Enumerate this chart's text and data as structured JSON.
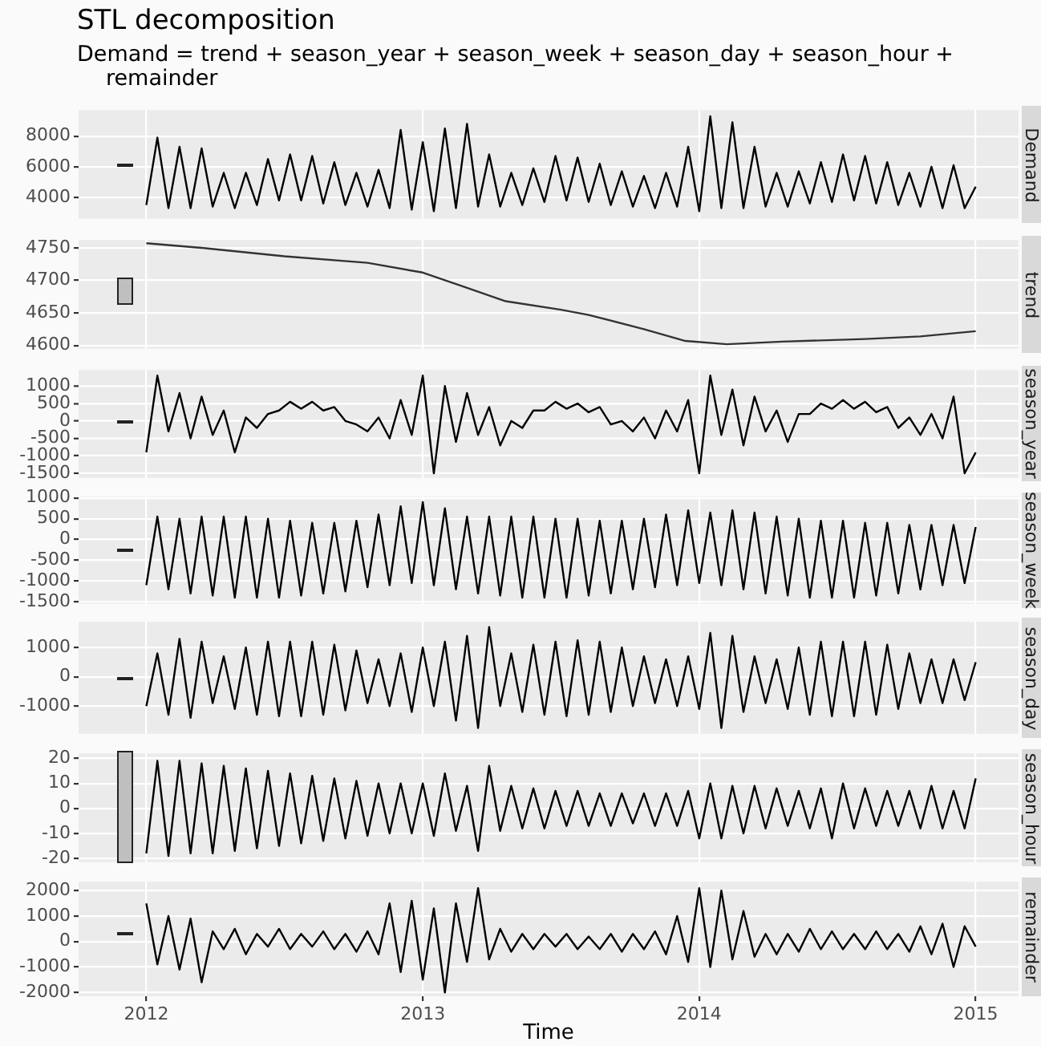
{
  "chart_data": [
    {
      "type": "line",
      "title": "STL decomposition",
      "subtitle": "Demand = trend + season_year + season_week + season_day + season_hour + remainder",
      "ylabel": "Demand",
      "color": "#000000",
      "grid": true,
      "tick_labels": "y",
      "xlim": [
        2011.755,
        2015.155
      ],
      "xticks": [
        2012,
        2013,
        2014,
        2015
      ],
      "ylim": [
        2600,
        9700
      ],
      "yticks": [
        4000,
        6000,
        8000
      ],
      "x": [
        2012,
        2012.04,
        2012.08,
        2012.12,
        2012.16,
        2012.2,
        2012.24,
        2012.28,
        2012.32,
        2012.36,
        2012.4,
        2012.44,
        2012.48,
        2012.52,
        2012.56,
        2012.6,
        2012.64,
        2012.68,
        2012.72,
        2012.76,
        2012.8,
        2012.84,
        2012.88,
        2012.92,
        2012.96,
        2013,
        2013.04,
        2013.08,
        2013.12,
        2013.16,
        2013.2,
        2013.24,
        2013.28,
        2013.32,
        2013.36,
        2013.4,
        2013.44,
        2013.48,
        2013.52,
        2013.56,
        2013.6,
        2013.64,
        2013.68,
        2013.72,
        2013.76,
        2013.8,
        2013.84,
        2013.88,
        2013.92,
        2013.96,
        2014,
        2014.04,
        2014.08,
        2014.12,
        2014.16,
        2014.2,
        2014.24,
        2014.28,
        2014.32,
        2014.36,
        2014.4,
        2014.44,
        2014.48,
        2014.52,
        2014.56,
        2014.6,
        2014.64,
        2014.68,
        2014.72,
        2014.76,
        2014.8,
        2014.84,
        2014.88,
        2014.92,
        2014.96,
        2015
      ],
      "values": [
        3500,
        7900,
        3300,
        7300,
        3300,
        7200,
        3400,
        5600,
        3300,
        5600,
        3500,
        6500,
        3800,
        6800,
        3800,
        6700,
        3600,
        6300,
        3500,
        5600,
        3400,
        5800,
        3300,
        8400,
        3200,
        7600,
        3100,
        8500,
        3300,
        8800,
        3400,
        6800,
        3400,
        5600,
        3500,
        5900,
        3700,
        6700,
        3800,
        6600,
        3700,
        6200,
        3500,
        5700,
        3400,
        5400,
        3300,
        5600,
        3400,
        7300,
        3100,
        9300,
        3300,
        8900,
        3300,
        7300,
        3400,
        5600,
        3400,
        5700,
        3600,
        6300,
        3700,
        6800,
        3800,
        6700,
        3600,
        6300,
        3500,
        5600,
        3400,
        6000,
        3300,
        6100,
        3300,
        4700
      ]
    },
    {
      "type": "line",
      "ylabel": "trend",
      "color": "#333333",
      "grid": true,
      "tick_labels": "y",
      "xlim": [
        2011.755,
        2015.155
      ],
      "xticks": [
        2012,
        2013,
        2014,
        2015
      ],
      "ylim": [
        4595,
        4762
      ],
      "yticks": [
        4600,
        4650,
        4700,
        4750
      ],
      "x": [
        2012,
        2012.2,
        2012.5,
        2012.8,
        2013,
        2013.15,
        2013.3,
        2013.5,
        2013.6,
        2013.8,
        2013.95,
        2014.1,
        2014.3,
        2014.6,
        2014.8,
        2015
      ],
      "values": [
        4757,
        4750,
        4737,
        4727,
        4712,
        4690,
        4668,
        4655,
        4647,
        4625,
        4607,
        4602,
        4606,
        4610,
        4614,
        4622
      ]
    },
    {
      "type": "line",
      "ylabel": "season_year",
      "color": "#000000",
      "grid": true,
      "tick_labels": "y",
      "xlim": [
        2011.755,
        2015.155
      ],
      "xticks": [
        2012,
        2013,
        2014,
        2015
      ],
      "ylim": [
        -1630,
        1460
      ],
      "yticks": [
        -1500,
        -1000,
        -500,
        0,
        500,
        1000
      ],
      "x": [
        2012,
        2012.04,
        2012.08,
        2012.12,
        2012.16,
        2012.2,
        2012.24,
        2012.28,
        2012.32,
        2012.36,
        2012.4,
        2012.44,
        2012.48,
        2012.52,
        2012.56,
        2012.6,
        2012.64,
        2012.68,
        2012.72,
        2012.76,
        2012.8,
        2012.84,
        2012.88,
        2012.92,
        2012.96,
        2013,
        2013.04,
        2013.08,
        2013.12,
        2013.16,
        2013.2,
        2013.24,
        2013.28,
        2013.32,
        2013.36,
        2013.4,
        2013.44,
        2013.48,
        2013.52,
        2013.56,
        2013.6,
        2013.64,
        2013.68,
        2013.72,
        2013.76,
        2013.8,
        2013.84,
        2013.88,
        2013.92,
        2013.96,
        2014,
        2014.04,
        2014.08,
        2014.12,
        2014.16,
        2014.2,
        2014.24,
        2014.28,
        2014.32,
        2014.36,
        2014.4,
        2014.44,
        2014.48,
        2014.52,
        2014.56,
        2014.6,
        2014.64,
        2014.68,
        2014.72,
        2014.76,
        2014.8,
        2014.84,
        2014.88,
        2014.92,
        2014.96,
        2015
      ],
      "values": [
        -900,
        1300,
        -300,
        800,
        -500,
        700,
        -400,
        300,
        -900,
        100,
        -200,
        200,
        300,
        550,
        350,
        550,
        300,
        400,
        0,
        -100,
        -300,
        100,
        -500,
        600,
        -400,
        1300,
        -1500,
        1000,
        -600,
        800,
        -400,
        400,
        -700,
        0,
        -200,
        300,
        300,
        550,
        350,
        500,
        250,
        400,
        -100,
        0,
        -300,
        100,
        -500,
        300,
        -300,
        600,
        -1500,
        1300,
        -400,
        900,
        -700,
        700,
        -300,
        300,
        -600,
        200,
        200,
        500,
        350,
        600,
        350,
        550,
        250,
        400,
        -200,
        100,
        -400,
        200,
        -500,
        700,
        -1500,
        -900
      ]
    },
    {
      "type": "line",
      "ylabel": "season_week",
      "color": "#000000",
      "grid": true,
      "tick_labels": "y",
      "xlim": [
        2011.755,
        2015.155
      ],
      "xticks": [
        2012,
        2013,
        2014,
        2015
      ],
      "ylim": [
        -1550,
        1030
      ],
      "yticks": [
        -1500,
        -1000,
        -500,
        0,
        500,
        1000
      ],
      "x": [
        2012,
        2012.04,
        2012.08,
        2012.12,
        2012.16,
        2012.2,
        2012.24,
        2012.28,
        2012.32,
        2012.36,
        2012.4,
        2012.44,
        2012.48,
        2012.52,
        2012.56,
        2012.6,
        2012.64,
        2012.68,
        2012.72,
        2012.76,
        2012.8,
        2012.84,
        2012.88,
        2012.92,
        2012.96,
        2013,
        2013.04,
        2013.08,
        2013.12,
        2013.16,
        2013.2,
        2013.24,
        2013.28,
        2013.32,
        2013.36,
        2013.4,
        2013.44,
        2013.48,
        2013.52,
        2013.56,
        2013.6,
        2013.64,
        2013.68,
        2013.72,
        2013.76,
        2013.8,
        2013.84,
        2013.88,
        2013.92,
        2013.96,
        2014,
        2014.04,
        2014.08,
        2014.12,
        2014.16,
        2014.2,
        2014.24,
        2014.28,
        2014.32,
        2014.36,
        2014.4,
        2014.44,
        2014.48,
        2014.52,
        2014.56,
        2014.6,
        2014.64,
        2014.68,
        2014.72,
        2014.76,
        2014.8,
        2014.84,
        2014.88,
        2014.92,
        2014.96,
        2015
      ],
      "values": [
        -1100,
        550,
        -1200,
        500,
        -1300,
        550,
        -1350,
        550,
        -1400,
        550,
        -1400,
        500,
        -1400,
        450,
        -1350,
        400,
        -1300,
        400,
        -1250,
        450,
        -1150,
        600,
        -1100,
        800,
        -1050,
        900,
        -1100,
        750,
        -1200,
        550,
        -1300,
        550,
        -1350,
        550,
        -1400,
        550,
        -1400,
        500,
        -1400,
        500,
        -1350,
        450,
        -1300,
        450,
        -1200,
        500,
        -1150,
        600,
        -1100,
        700,
        -1050,
        650,
        -1100,
        700,
        -1200,
        650,
        -1300,
        550,
        -1350,
        500,
        -1400,
        450,
        -1400,
        450,
        -1400,
        400,
        -1350,
        400,
        -1300,
        350,
        -1200,
        350,
        -1100,
        350,
        -1050,
        300
      ]
    },
    {
      "type": "line",
      "ylabel": "season_day",
      "color": "#000000",
      "grid": true,
      "tick_labels": "y",
      "xlim": [
        2011.755,
        2015.155
      ],
      "xticks": [
        2012,
        2013,
        2014,
        2015
      ],
      "ylim": [
        -1950,
        1880
      ],
      "yticks": [
        -1000,
        0,
        1000
      ],
      "x": [
        2012,
        2012.04,
        2012.08,
        2012.12,
        2012.16,
        2012.2,
        2012.24,
        2012.28,
        2012.32,
        2012.36,
        2012.4,
        2012.44,
        2012.48,
        2012.52,
        2012.56,
        2012.6,
        2012.64,
        2012.68,
        2012.72,
        2012.76,
        2012.8,
        2012.84,
        2012.88,
        2012.92,
        2012.96,
        2013,
        2013.04,
        2013.08,
        2013.12,
        2013.16,
        2013.2,
        2013.24,
        2013.28,
        2013.32,
        2013.36,
        2013.4,
        2013.44,
        2013.48,
        2013.52,
        2013.56,
        2013.6,
        2013.64,
        2013.68,
        2013.72,
        2013.76,
        2013.8,
        2013.84,
        2013.88,
        2013.92,
        2013.96,
        2014,
        2014.04,
        2014.08,
        2014.12,
        2014.16,
        2014.2,
        2014.24,
        2014.28,
        2014.32,
        2014.36,
        2014.4,
        2014.44,
        2014.48,
        2014.52,
        2014.56,
        2014.6,
        2014.64,
        2014.68,
        2014.72,
        2014.76,
        2014.8,
        2014.84,
        2014.88,
        2014.92,
        2014.96,
        2015
      ],
      "values": [
        -1000,
        800,
        -1300,
        1300,
        -1400,
        1200,
        -900,
        700,
        -1100,
        1000,
        -1300,
        1200,
        -1350,
        1200,
        -1350,
        1200,
        -1300,
        1100,
        -1150,
        900,
        -900,
        600,
        -1000,
        800,
        -1200,
        1000,
        -1000,
        1200,
        -1500,
        1400,
        -1750,
        1700,
        -1000,
        800,
        -1200,
        1100,
        -1300,
        1200,
        -1350,
        1250,
        -1300,
        1200,
        -1200,
        1000,
        -1000,
        700,
        -900,
        600,
        -1000,
        700,
        -1100,
        1500,
        -1750,
        1400,
        -1200,
        700,
        -900,
        600,
        -1100,
        1000,
        -1300,
        1200,
        -1350,
        1200,
        -1350,
        1200,
        -1300,
        1100,
        -1100,
        800,
        -900,
        600,
        -900,
        600,
        -800,
        500
      ]
    },
    {
      "type": "line",
      "ylabel": "season_hour",
      "color": "#000000",
      "grid": true,
      "tick_labels": "y",
      "xlim": [
        2011.755,
        2015.155
      ],
      "xticks": [
        2012,
        2013,
        2014,
        2015
      ],
      "ylim": [
        -21.5,
        22
      ],
      "yticks": [
        -20,
        -10,
        0,
        10,
        20
      ],
      "x": [
        2012,
        2012.04,
        2012.08,
        2012.12,
        2012.16,
        2012.2,
        2012.24,
        2012.28,
        2012.32,
        2012.36,
        2012.4,
        2012.44,
        2012.48,
        2012.52,
        2012.56,
        2012.6,
        2012.64,
        2012.68,
        2012.72,
        2012.76,
        2012.8,
        2012.84,
        2012.88,
        2012.92,
        2012.96,
        2013,
        2013.04,
        2013.08,
        2013.12,
        2013.16,
        2013.2,
        2013.24,
        2013.28,
        2013.32,
        2013.36,
        2013.4,
        2013.44,
        2013.48,
        2013.52,
        2013.56,
        2013.6,
        2013.64,
        2013.68,
        2013.72,
        2013.76,
        2013.8,
        2013.84,
        2013.88,
        2013.92,
        2013.96,
        2014,
        2014.04,
        2014.08,
        2014.12,
        2014.16,
        2014.2,
        2014.24,
        2014.28,
        2014.32,
        2014.36,
        2014.4,
        2014.44,
        2014.48,
        2014.52,
        2014.56,
        2014.6,
        2014.64,
        2014.68,
        2014.72,
        2014.76,
        2014.8,
        2014.84,
        2014.88,
        2014.92,
        2014.96,
        2015
      ],
      "values": [
        -18,
        19,
        -19,
        19,
        -18,
        18,
        -18,
        17,
        -17,
        16,
        -16,
        15,
        -15,
        14,
        -14,
        13,
        -13,
        12,
        -12,
        11,
        -11,
        10,
        -10,
        10,
        -10,
        10,
        -11,
        14,
        -9,
        9,
        -17,
        17,
        -9,
        9,
        -8,
        8,
        -8,
        7,
        -7,
        7,
        -7,
        6,
        -7,
        6,
        -6,
        6,
        -7,
        6,
        -7,
        7,
        -12,
        10,
        -12,
        9,
        -10,
        9,
        -8,
        8,
        -7,
        7,
        -8,
        8,
        -12,
        10,
        -8,
        8,
        -7,
        7,
        -7,
        7,
        -8,
        9,
        -8,
        7,
        -8,
        12
      ]
    },
    {
      "type": "line",
      "ylabel": "remainder",
      "xlabel": "Time",
      "color": "#000000",
      "grid": true,
      "xlim": [
        2011.755,
        2015.155
      ],
      "xticks": [
        2012,
        2013,
        2014,
        2015
      ],
      "ylim": [
        -2150,
        2350
      ],
      "yticks": [
        -2000,
        -1000,
        0,
        1000,
        2000
      ],
      "x": [
        2012,
        2012.04,
        2012.08,
        2012.12,
        2012.16,
        2012.2,
        2012.24,
        2012.28,
        2012.32,
        2012.36,
        2012.4,
        2012.44,
        2012.48,
        2012.52,
        2012.56,
        2012.6,
        2012.64,
        2012.68,
        2012.72,
        2012.76,
        2012.8,
        2012.84,
        2012.88,
        2012.92,
        2012.96,
        2013,
        2013.04,
        2013.08,
        2013.12,
        2013.16,
        2013.2,
        2013.24,
        2013.28,
        2013.32,
        2013.36,
        2013.4,
        2013.44,
        2013.48,
        2013.52,
        2013.56,
        2013.6,
        2013.64,
        2013.68,
        2013.72,
        2013.76,
        2013.8,
        2013.84,
        2013.88,
        2013.92,
        2013.96,
        2014,
        2014.04,
        2014.08,
        2014.12,
        2014.16,
        2014.2,
        2014.24,
        2014.28,
        2014.32,
        2014.36,
        2014.4,
        2014.44,
        2014.48,
        2014.52,
        2014.56,
        2014.6,
        2014.64,
        2014.68,
        2014.72,
        2014.76,
        2014.8,
        2014.84,
        2014.88,
        2014.92,
        2014.96,
        2015
      ],
      "values": [
        1500,
        -900,
        1000,
        -1100,
        900,
        -1600,
        400,
        -300,
        500,
        -500,
        300,
        -200,
        500,
        -300,
        300,
        -200,
        400,
        -300,
        300,
        -400,
        400,
        -500,
        1500,
        -1200,
        1600,
        -1500,
        1300,
        -2000,
        1500,
        -800,
        2100,
        -700,
        500,
        -400,
        300,
        -300,
        300,
        -200,
        300,
        -300,
        200,
        -300,
        300,
        -400,
        300,
        -300,
        400,
        -500,
        1000,
        -800,
        2100,
        -1000,
        2000,
        -700,
        1200,
        -600,
        300,
        -500,
        300,
        -400,
        500,
        -300,
        400,
        -300,
        300,
        -300,
        400,
        -300,
        300,
        -400,
        600,
        -500,
        700,
        -1000,
        600,
        -200
      ]
    }
  ]
}
